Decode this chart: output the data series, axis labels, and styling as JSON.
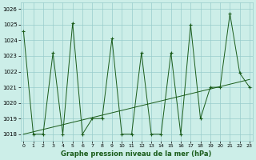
{
  "x": [
    0,
    1,
    2,
    3,
    4,
    5,
    6,
    7,
    8,
    9,
    10,
    11,
    12,
    13,
    14,
    15,
    16,
    17,
    18,
    19,
    20,
    21,
    22,
    23
  ],
  "y_main": [
    1024.6,
    1018.0,
    1018.0,
    1023.2,
    1018.0,
    1025.1,
    1018.0,
    1019.0,
    1019.0,
    1024.1,
    1018.0,
    1018.0,
    1023.2,
    1018.0,
    1018.0,
    1023.2,
    1018.0,
    1025.0,
    1019.0,
    1021.0,
    1021.0,
    1025.7,
    1021.9,
    1021.0
  ],
  "y_trend_x": [
    0,
    23
  ],
  "y_trend_y": [
    1018.0,
    1021.5
  ],
  "line_color": "#1a5c1a",
  "bg_color": "#cceee8",
  "grid_color": "#99cccc",
  "title": "Graphe pression niveau de la mer (hPa)",
  "xlim": [
    -0.3,
    23.3
  ],
  "ylim": [
    1017.6,
    1026.4
  ],
  "xticks": [
    0,
    1,
    2,
    3,
    4,
    5,
    6,
    7,
    8,
    9,
    10,
    11,
    12,
    13,
    14,
    15,
    16,
    17,
    18,
    19,
    20,
    21,
    22,
    23
  ],
  "yticks": [
    1018,
    1019,
    1020,
    1021,
    1022,
    1023,
    1024,
    1025,
    1026
  ]
}
